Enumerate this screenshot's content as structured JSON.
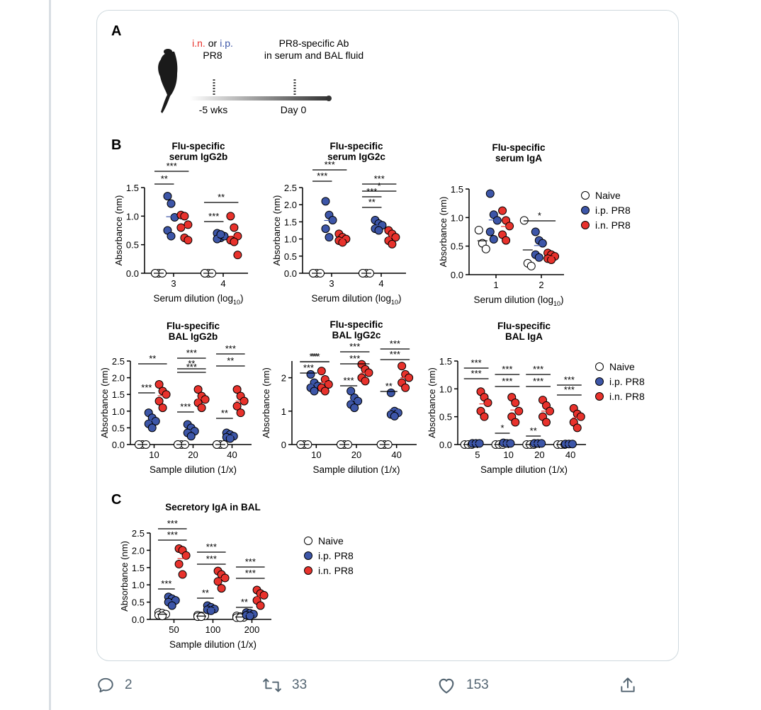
{
  "panels": {
    "A": {
      "letter": "A",
      "route_in": "i.n.",
      "route_or": "or",
      "route_ip": "i.p.",
      "virus": "PR8",
      "readout_line1": "PR8-specific Ab",
      "readout_line2": "in serum and BAL fluid",
      "t1": "-5 wks",
      "t2": "Day 0"
    },
    "B": {
      "letter": "B"
    },
    "C": {
      "letter": "C"
    }
  },
  "legend": {
    "naive": "Naive",
    "ip": "i.p. PR8",
    "in": "i.n. PR8"
  },
  "colors": {
    "naive": "#ffffff",
    "ip": "#3d56a8",
    "in": "#e8322c",
    "ip_text": "#3d56a8",
    "in_text": "#e8322c"
  },
  "chart_data": [
    {
      "type": "scatter",
      "title": "Flu-specific serum IgG2b",
      "title_lines": [
        "Flu-specific",
        "serum IgG2b"
      ],
      "ylabel": "Absorbance (nm)",
      "xlabel": "Serum dilution (log",
      "xlabel_sub": "10",
      "xlabel_end": ")",
      "ylim": [
        0,
        1.5
      ],
      "yticks": [
        "0.0",
        "0.5",
        "1.0",
        "1.5"
      ],
      "categories": [
        "3",
        "4"
      ],
      "series": [
        {
          "name": "Naive",
          "values": [
            [
              0.0,
              0.0,
              0.0,
              0.0
            ],
            [
              0.0,
              0.0,
              0.0,
              0.0
            ]
          ]
        },
        {
          "name": "i.p. PR8",
          "values": [
            [
              1.35,
              1.22,
              0.98,
              0.75,
              0.65
            ],
            [
              0.7,
              0.62,
              0.65,
              0.6,
              0.68
            ]
          ]
        },
        {
          "name": "i.n. PR8",
          "values": [
            [
              1.02,
              1.0,
              0.85,
              0.8,
              0.62,
              0.58
            ],
            [
              1.0,
              0.8,
              0.65,
              0.58,
              0.55,
              0.32
            ]
          ]
        }
      ],
      "brackets": [
        {
          "cat": 0,
          "label": "**",
          "level": 1
        },
        {
          "cat": 0,
          "label": "***",
          "level": 2
        },
        {
          "cat": 1,
          "label": "**",
          "level": 0
        },
        {
          "cat": 1,
          "label": "***",
          "level": 1,
          "short": true
        }
      ]
    },
    {
      "type": "scatter",
      "title": "Flu-specific serum IgG2c",
      "title_lines": [
        "Flu-specific",
        "serum IgG2c"
      ],
      "ylabel": "Absorbance (nm)",
      "xlabel": "Serum dilution (log",
      "xlabel_sub": "10",
      "xlabel_end": ")",
      "ylim": [
        0,
        2.5
      ],
      "yticks": [
        "0.0",
        "0.5",
        "1.0",
        "1.5",
        "2.0",
        "2.5"
      ],
      "categories": [
        "3",
        "4"
      ],
      "series": [
        {
          "name": "Naive",
          "values": [
            [
              0.0,
              0.0,
              0.0,
              0.0
            ],
            [
              0.0,
              0.0,
              0.0,
              0.0
            ]
          ]
        },
        {
          "name": "i.p. PR8",
          "values": [
            [
              2.1,
              1.7,
              1.55,
              1.3,
              1.05
            ],
            [
              1.55,
              1.45,
              1.4,
              1.3,
              1.25
            ]
          ]
        },
        {
          "name": "i.n. PR8",
          "values": [
            [
              1.15,
              1.05,
              1.0,
              0.95,
              0.9
            ],
            [
              1.25,
              1.15,
              1.05,
              0.95,
              0.85
            ]
          ]
        }
      ],
      "brackets": []
    },
    {
      "type": "scatter",
      "title": "Flu-specific serum IgA",
      "title_lines": [
        "Flu-specific",
        "serum IgA"
      ],
      "ylabel": "Absorbance (nm)",
      "xlabel": "Serum dilution (log",
      "xlabel_sub": "10",
      "xlabel_end": ")",
      "ylim": [
        0,
        1.5
      ],
      "yticks": [
        "0.0",
        "0.5",
        "1.0",
        "1.5"
      ],
      "categories": [
        "1",
        "2"
      ],
      "series": [
        {
          "name": "Naive",
          "values": [
            [
              0.78,
              0.55,
              0.45
            ],
            [
              0.95,
              0.2,
              0.15
            ]
          ]
        },
        {
          "name": "i.p. PR8",
          "values": [
            [
              1.42,
              1.05,
              0.95,
              0.75,
              0.62
            ],
            [
              0.75,
              0.6,
              0.55,
              0.35,
              0.3
            ]
          ]
        },
        {
          "name": "i.n. PR8",
          "values": [
            [
              1.12,
              0.95,
              0.85,
              0.7,
              0.6
            ],
            [
              0.38,
              0.35,
              0.32,
              0.28,
              0.26
            ]
          ]
        }
      ],
      "brackets": []
    },
    {
      "type": "scatter",
      "title": "Flu-specific BAL IgG2b",
      "title_lines": [
        "Flu-specific",
        "BAL IgG2b"
      ],
      "ylabel": "Absorbance (nm)",
      "xlabel": "Sample dilution (1/x)",
      "ylim": [
        0,
        2.5
      ],
      "yticks": [
        "0.0",
        "0.5",
        "1.0",
        "1.5",
        "2.0",
        "2.5"
      ],
      "categories": [
        "10",
        "20",
        "40"
      ],
      "series": [
        {
          "name": "Naive",
          "values": [
            [
              0.0,
              0.0,
              0.0,
              0.0
            ],
            [
              0.0,
              0.0,
              0.0,
              0.0
            ],
            [
              0.0,
              0.0,
              0.0,
              0.0
            ]
          ]
        },
        {
          "name": "i.p. PR8",
          "values": [
            [
              0.95,
              0.8,
              0.7,
              0.62,
              0.5
            ],
            [
              0.6,
              0.5,
              0.4,
              0.35,
              0.25
            ],
            [
              0.35,
              0.3,
              0.25,
              0.22,
              0.18
            ]
          ]
        },
        {
          "name": "i.n. PR8",
          "values": [
            [
              1.8,
              1.6,
              1.5,
              1.3,
              1.1
            ],
            [
              1.65,
              1.45,
              1.35,
              1.25,
              1.1
            ],
            [
              1.65,
              1.45,
              1.3,
              1.15,
              0.95
            ]
          ]
        }
      ],
      "brackets": []
    },
    {
      "type": "scatter",
      "title": "Flu-specific BAL IgG2c",
      "title_lines": [
        "Flu-specific",
        "BAL IgG2c"
      ],
      "ylabel": "Absorbance (nm)",
      "xlabel": "Sample dilution (1/x)",
      "ylim": [
        0,
        2.5
      ],
      "yticks": [
        "0",
        "1",
        "2"
      ],
      "ytick_values": [
        0,
        1,
        2
      ],
      "categories": [
        "10",
        "20",
        "40"
      ],
      "series": [
        {
          "name": "Naive",
          "values": [
            [
              0.0,
              0.0,
              0.0,
              0.0
            ],
            [
              0.0,
              0.0,
              0.0,
              0.0
            ],
            [
              0.0,
              0.0,
              0.0,
              0.0
            ]
          ]
        },
        {
          "name": "i.p. PR8",
          "values": [
            [
              2.1,
              1.85,
              1.75,
              1.7,
              1.6
            ],
            [
              1.6,
              1.4,
              1.3,
              1.2,
              1.1
            ],
            [
              1.55,
              1.0,
              0.95,
              0.9,
              0.85
            ]
          ]
        },
        {
          "name": "i.n. PR8",
          "values": [
            [
              2.2,
              1.95,
              1.8,
              1.7,
              1.6
            ],
            [
              2.4,
              2.25,
              2.15,
              2.0,
              1.9
            ],
            [
              2.35,
              2.1,
              2.0,
              1.85,
              1.7
            ]
          ]
        }
      ],
      "brackets": []
    },
    {
      "type": "scatter",
      "title": "Flu-specific BAL IgA",
      "title_lines": [
        "Flu-specific",
        "BAL IgA"
      ],
      "ylabel": "Absorbance (nm)",
      "xlabel": "Sample dilution (1/x)",
      "ylim": [
        0,
        1.5
      ],
      "yticks": [
        "0.0",
        "0.5",
        "1.0",
        "1.5"
      ],
      "categories": [
        "5",
        "10",
        "20",
        "40"
      ],
      "series": [
        {
          "name": "Naive",
          "values": [
            [
              0.0,
              0.0,
              0.0
            ],
            [
              0.0,
              0.0,
              0.0
            ],
            [
              0.0,
              0.0,
              0.0
            ],
            [
              0.0,
              0.0,
              0.0
            ]
          ]
        },
        {
          "name": "i.p. PR8",
          "values": [
            [
              0.02,
              0.02,
              0.02
            ],
            [
              0.03,
              0.02,
              0.02
            ],
            [
              0.02,
              0.02,
              0.02
            ],
            [
              0.01,
              0.01,
              0.01
            ]
          ]
        },
        {
          "name": "i.n. PR8",
          "values": [
            [
              0.95,
              0.85,
              0.75,
              0.6,
              0.5
            ],
            [
              0.85,
              0.75,
              0.6,
              0.5,
              0.4
            ],
            [
              0.8,
              0.7,
              0.6,
              0.5,
              0.4
            ],
            [
              0.65,
              0.55,
              0.5,
              0.4,
              0.3
            ]
          ]
        }
      ],
      "brackets": []
    },
    {
      "type": "scatter",
      "title": "Secretory IgA in BAL",
      "title_lines": [
        "Secretory IgA in BAL"
      ],
      "ylabel": "Absorbance (nm)",
      "xlabel": "Sample dilution (1/x)",
      "ylim": [
        0,
        2.5
      ],
      "yticks": [
        "0.0",
        "0.5",
        "1.0",
        "1.5",
        "2.0",
        "2.5"
      ],
      "categories": [
        "50",
        "100",
        "200"
      ],
      "series": [
        {
          "name": "Naive",
          "values": [
            [
              0.2,
              0.18,
              0.15,
              0.12,
              0.1
            ],
            [
              0.12,
              0.1,
              0.1,
              0.08,
              0.08
            ],
            [
              0.1,
              0.08,
              0.06,
              0.05,
              0.05
            ]
          ]
        },
        {
          "name": "i.p. PR8",
          "values": [
            [
              0.65,
              0.6,
              0.55,
              0.5,
              0.4
            ],
            [
              0.4,
              0.35,
              0.3,
              0.28,
              0.25
            ],
            [
              0.2,
              0.18,
              0.15,
              0.12,
              0.1
            ]
          ]
        },
        {
          "name": "i.n. PR8",
          "values": [
            [
              2.05,
              2.0,
              1.85,
              1.6,
              1.3
            ],
            [
              1.4,
              1.3,
              1.2,
              1.1,
              0.9
            ],
            [
              0.85,
              0.75,
              0.7,
              0.55,
              0.4
            ]
          ]
        }
      ],
      "brackets": []
    }
  ],
  "significance": [
    [
      "**",
      "***",
      "**",
      "***"
    ],
    [
      "***",
      "***",
      "*",
      "***",
      "***",
      "**"
    ],
    [
      "*"
    ],
    [
      "***",
      "**",
      "***",
      "***",
      "***",
      "**",
      "**",
      "***",
      "**"
    ],
    [
      "***",
      "***",
      "***",
      "***",
      "***",
      "**",
      "***",
      "***",
      "**"
    ],
    [
      "***",
      "***",
      "***",
      "***",
      "***",
      "***",
      "***",
      "***",
      "*",
      "**"
    ],
    [
      "***",
      "***",
      "***",
      "***",
      "***",
      "***",
      "***",
      "**",
      "**"
    ]
  ],
  "actions": {
    "reply_count": "2",
    "retweet_count": "33",
    "like_count": "153"
  }
}
